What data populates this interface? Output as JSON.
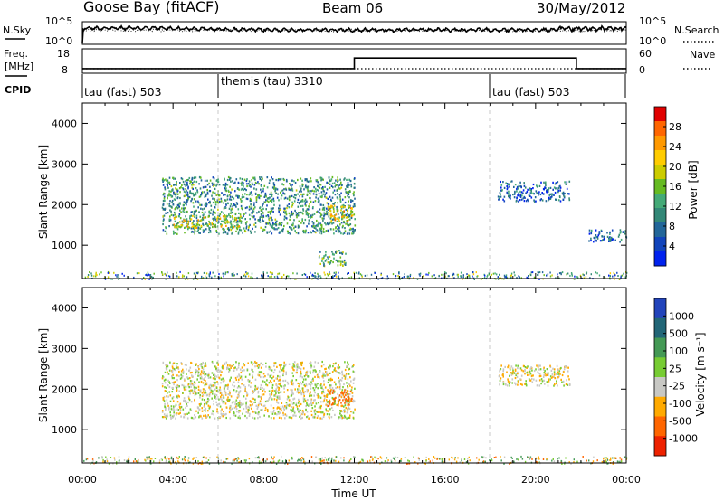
{
  "header": {
    "station": "Goose Bay (fitACF)",
    "beam": "Beam 06",
    "date": "30/May/2012"
  },
  "noise_panel": {
    "left_label": "N.Sky",
    "right_label": "N.Search",
    "left_ticks": [
      "10^5",
      "10^0"
    ],
    "right_ticks": [
      "10^5",
      "10^0"
    ]
  },
  "freq_panel": {
    "left_label_1": "Freq.",
    "left_label_2": "[MHz]",
    "right_label": "Nave",
    "left_ticks": [
      "18",
      "8"
    ],
    "right_ticks": [
      "60",
      "0"
    ]
  },
  "cpid": {
    "label": "CPID",
    "segments": [
      {
        "start_ut": "00:00",
        "end_ut": "06:00",
        "text": "tau (fast) 503"
      },
      {
        "start_ut": "06:00",
        "end_ut": "18:00",
        "text": "themis (tau) 3310"
      },
      {
        "start_ut": "18:00",
        "end_ut": "24:00",
        "text": "tau (fast) 503"
      }
    ]
  },
  "power_panel": {
    "ylabel": "Slant Range [km]",
    "yticks": [
      "1000",
      "2000",
      "3000",
      "4000"
    ],
    "colorbar_label": "Power [dB]",
    "colorbar_ticks": [
      "28",
      "24",
      "20",
      "16",
      "12",
      "8",
      "4"
    ],
    "colors": [
      "#e00000",
      "#ff6600",
      "#ff9900",
      "#ffcc00",
      "#cccc00",
      "#66bb22",
      "#44aa77",
      "#338877",
      "#226699",
      "#1144bb",
      "#0022ee"
    ]
  },
  "velocity_panel": {
    "ylabel": "Slant Range [km]",
    "yticks": [
      "1000",
      "2000",
      "3000",
      "4000"
    ],
    "colorbar_label": "Velocity [m s⁻¹]",
    "colorbar_ticks": [
      "1000",
      "500",
      "100",
      "25",
      "-25",
      "-100",
      "-500",
      "-1000"
    ],
    "colors": [
      "#2244bb",
      "#226677",
      "#449955",
      "#77cc33",
      "#c8c8c4",
      "#ffaa00",
      "#ff6600",
      "#ee2200"
    ]
  },
  "xaxis": {
    "label": "Time UT",
    "ticks": [
      "00:00",
      "04:00",
      "08:00",
      "12:00",
      "16:00",
      "20:00",
      "00:00"
    ]
  },
  "chart_data": [
    {
      "type": "line",
      "name": "noise",
      "x_range_hours": [
        0,
        24
      ],
      "description_series": [
        "N.Sky",
        "N.Search"
      ]
    },
    {
      "type": "line",
      "name": "frequency / nave",
      "x": [
        0,
        12,
        12,
        21.8,
        21.8,
        24
      ],
      "freq_mhz": [
        10.3,
        10.3,
        16.8,
        16.8,
        10.3,
        10.3
      ]
    },
    {
      "type": "heatmap",
      "name": "power",
      "x_range_hours": [
        0,
        24
      ],
      "y_range_km": [
        180,
        4500
      ],
      "value_unit": "dB",
      "color_range": [
        0,
        30
      ],
      "regions": [
        {
          "t0": 3.5,
          "t1": 12.0,
          "r0": 1300,
          "r1": 2700,
          "value": 10
        },
        {
          "t0": 4.0,
          "t1": 7.0,
          "r0": 1450,
          "r1": 1750,
          "value": 18
        },
        {
          "t0": 10.8,
          "t1": 11.9,
          "r0": 1600,
          "r1": 2000,
          "value": 20
        },
        {
          "t0": 10.4,
          "t1": 11.6,
          "r0": 500,
          "r1": 900,
          "value": 12
        },
        {
          "t0": 18.3,
          "t1": 21.5,
          "r0": 2100,
          "r1": 2600,
          "value": 6
        },
        {
          "t0": 22.3,
          "t1": 24.0,
          "r0": 1100,
          "r1": 1400,
          "value": 5
        }
      ]
    },
    {
      "type": "heatmap",
      "name": "velocity",
      "x_range_hours": [
        0,
        24
      ],
      "y_range_km": [
        180,
        4500
      ],
      "value_unit": "m/s",
      "color_range": [
        -1000,
        1000
      ],
      "regions": [
        {
          "t0": 3.5,
          "t1": 12.0,
          "r0": 1300,
          "r1": 2700,
          "value": 0
        },
        {
          "t0": 10.8,
          "t1": 11.9,
          "r0": 1600,
          "r1": 2000,
          "value": -150
        },
        {
          "t0": 18.3,
          "t1": 21.5,
          "r0": 2100,
          "r1": 2600,
          "value": 0
        }
      ]
    }
  ]
}
